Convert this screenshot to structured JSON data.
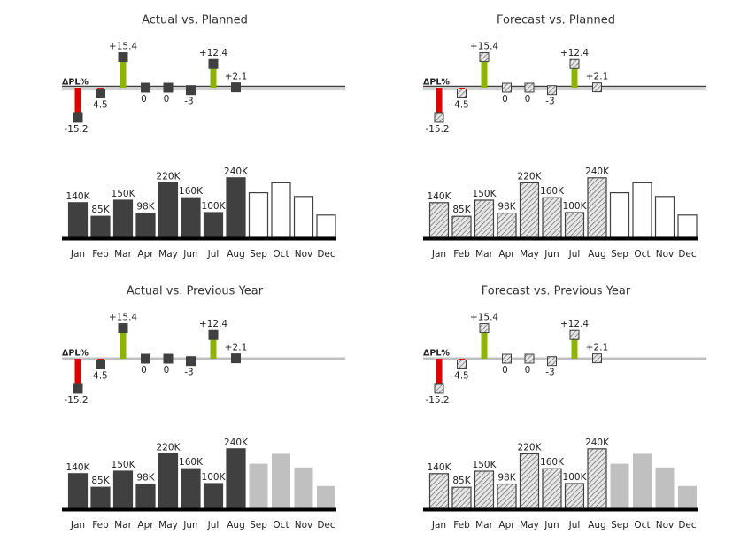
{
  "chart_data": [
    {
      "type": "variance-bar",
      "title": "Actual vs. Planned",
      "delta_label": "ΔPL%",
      "categories": [
        "Jan",
        "Feb",
        "Mar",
        "Apr",
        "May",
        "Jun",
        "Jul",
        "Aug",
        "Sep",
        "Oct",
        "Nov",
        "Dec"
      ],
      "delta": [
        -15.2,
        -4.5,
        15.4,
        0,
        0,
        -3,
        12.4,
        2.1,
        null,
        null,
        null,
        null
      ],
      "delta_labels": [
        "-15.2",
        "-4.5",
        "+15.4",
        "0",
        "0",
        "-3",
        "+12.4",
        "+2.1",
        null,
        null,
        null,
        null
      ],
      "values": [
        140000,
        85000,
        150000,
        98000,
        220000,
        160000,
        100000,
        240000,
        180000,
        220000,
        165000,
        90000
      ],
      "value_labels": [
        "140K",
        "85K",
        "150K",
        "98K",
        "220K",
        "160K",
        "100K",
        "240K",
        null,
        null,
        null,
        null
      ],
      "ylim": [
        0,
        250000
      ],
      "delta_lim": [
        -16,
        16
      ],
      "fill": "solid",
      "color": "#404040",
      "comparison_color": "#ffffff",
      "comparison_stroke": "#404040",
      "delta_axis_color": "#404040",
      "delta_axis_style": "double",
      "positive_color": "#8cb400",
      "negative_color": "#e00000"
    },
    {
      "type": "variance-bar",
      "title": "Forecast vs. Planned",
      "delta_label": "ΔPL%",
      "categories": [
        "Jan",
        "Feb",
        "Mar",
        "Apr",
        "May",
        "Jun",
        "Jul",
        "Aug",
        "Sep",
        "Oct",
        "Nov",
        "Dec"
      ],
      "delta": [
        -15.2,
        -4.5,
        15.4,
        0,
        0,
        -3,
        12.4,
        2.1,
        null,
        null,
        null,
        null
      ],
      "delta_labels": [
        "-15.2",
        "-4.5",
        "+15.4",
        "0",
        "0",
        "-3",
        "+12.4",
        "+2.1",
        null,
        null,
        null,
        null
      ],
      "values": [
        140000,
        85000,
        150000,
        98000,
        220000,
        160000,
        100000,
        240000,
        180000,
        220000,
        165000,
        90000
      ],
      "value_labels": [
        "140K",
        "85K",
        "150K",
        "98K",
        "220K",
        "160K",
        "100K",
        "240K",
        null,
        null,
        null,
        null
      ],
      "ylim": [
        0,
        250000
      ],
      "delta_lim": [
        -16,
        16
      ],
      "fill": "hatch",
      "color": "#404040",
      "comparison_color": "#ffffff",
      "comparison_stroke": "#404040",
      "delta_axis_color": "#404040",
      "delta_axis_style": "double",
      "positive_color": "#8cb400",
      "negative_color": "#e00000"
    },
    {
      "type": "variance-bar",
      "title": "Actual vs. Previous Year",
      "delta_label": "ΔPL%",
      "categories": [
        "Jan",
        "Feb",
        "Mar",
        "Apr",
        "May",
        "Jun",
        "Jul",
        "Aug",
        "Sep",
        "Oct",
        "Nov",
        "Dec"
      ],
      "delta": [
        -15.2,
        -4.5,
        15.4,
        0,
        0,
        -3,
        12.4,
        2.1,
        null,
        null,
        null,
        null
      ],
      "delta_labels": [
        "-15.2",
        "-4.5",
        "+15.4",
        "0",
        "0",
        "-3",
        "+12.4",
        "+2.1",
        null,
        null,
        null,
        null
      ],
      "values": [
        140000,
        85000,
        150000,
        98000,
        220000,
        160000,
        100000,
        240000,
        180000,
        220000,
        165000,
        90000
      ],
      "value_labels": [
        "140K",
        "85K",
        "150K",
        "98K",
        "220K",
        "160K",
        "100K",
        "240K",
        null,
        null,
        null,
        null
      ],
      "ylim": [
        0,
        250000
      ],
      "delta_lim": [
        -16,
        16
      ],
      "fill": "solid",
      "color": "#404040",
      "comparison_color": "#c0c0c0",
      "comparison_stroke": "none",
      "delta_axis_color": "#c0c0c0",
      "delta_axis_style": "single",
      "positive_color": "#8cb400",
      "negative_color": "#e00000"
    },
    {
      "type": "variance-bar",
      "title": "Forecast vs. Previous Year",
      "delta_label": "ΔPL%",
      "categories": [
        "Jan",
        "Feb",
        "Mar",
        "Apr",
        "May",
        "Jun",
        "Jul",
        "Aug",
        "Sep",
        "Oct",
        "Nov",
        "Dec"
      ],
      "delta": [
        -15.2,
        -4.5,
        15.4,
        0,
        0,
        -3,
        12.4,
        2.1,
        null,
        null,
        null,
        null
      ],
      "delta_labels": [
        "-15.2",
        "-4.5",
        "+15.4",
        "0",
        "0",
        "-3",
        "+12.4",
        "+2.1",
        null,
        null,
        null,
        null
      ],
      "values": [
        140000,
        85000,
        150000,
        98000,
        220000,
        160000,
        100000,
        240000,
        180000,
        220000,
        165000,
        90000
      ],
      "value_labels": [
        "140K",
        "85K",
        "150K",
        "98K",
        "220K",
        "160K",
        "100K",
        "240K",
        null,
        null,
        null,
        null
      ],
      "ylim": [
        0,
        250000
      ],
      "delta_lim": [
        -16,
        16
      ],
      "fill": "hatch",
      "color": "#404040",
      "comparison_color": "#c0c0c0",
      "comparison_stroke": "none",
      "delta_axis_color": "#c0c0c0",
      "delta_axis_style": "single",
      "positive_color": "#8cb400",
      "negative_color": "#e00000"
    }
  ]
}
